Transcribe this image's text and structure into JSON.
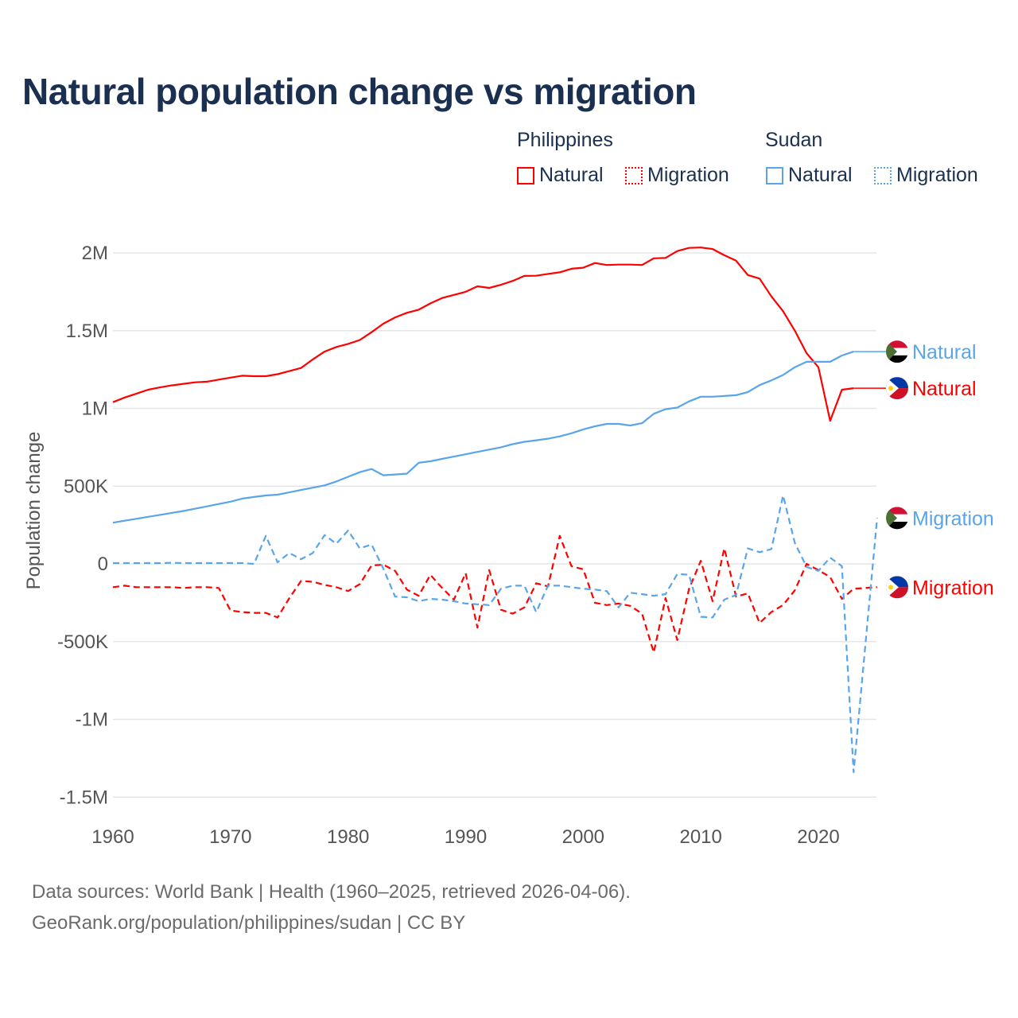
{
  "title": "Natural population change vs migration",
  "legend": {
    "groups": [
      {
        "name": "Philippines",
        "color": "#ff0000",
        "items": [
          "Natural",
          "Migration"
        ]
      },
      {
        "name": "Sudan",
        "color": "#5aa5ea",
        "items": [
          "Natural",
          "Migration"
        ]
      }
    ]
  },
  "footer": {
    "line1": "Data sources: World Bank | Health (1960–2025, retrieved 2026-04-06).",
    "line2": "GeoRank.org/population/philippines/sudan | CC BY"
  },
  "chart_data": {
    "type": "line",
    "title": "Natural population change vs migration",
    "xlabel": "",
    "ylabel": "Population change",
    "xlim": [
      1960,
      2025
    ],
    "ylim": [
      -1500000,
      2200000
    ],
    "x_ticks": [
      1960,
      1970,
      1980,
      1990,
      2000,
      2010,
      2020
    ],
    "x_tick_labels": [
      "1960",
      "1970",
      "1980",
      "1990",
      "2000",
      "2010",
      "2020"
    ],
    "y_ticks": [
      -1500000,
      -1000000,
      -500000,
      0,
      500000,
      1000000,
      1500000,
      2000000
    ],
    "y_tick_labels": [
      "-1.5M",
      "-1M",
      "-500K",
      "0",
      "500K",
      "1M",
      "1.5M",
      "2M"
    ],
    "grid": true,
    "start_year": 1960,
    "series": [
      {
        "name": "Philippines Natural",
        "label": "Natural",
        "color": "#ff0000",
        "dash": false,
        "flag": "philippines",
        "values_k": [
          1040,
          1070,
          1095,
          1120,
          1135,
          1148,
          1158,
          1168,
          1172,
          1185,
          1198,
          1210,
          1207,
          1207,
          1220,
          1240,
          1260,
          1315,
          1365,
          1395,
          1415,
          1440,
          1490,
          1545,
          1585,
          1615,
          1635,
          1675,
          1710,
          1730,
          1750,
          1785,
          1775,
          1795,
          1820,
          1852,
          1853,
          1865,
          1875,
          1898,
          1905,
          1935,
          1922,
          1925,
          1925,
          1922,
          1965,
          1968,
          2012,
          2032,
          2035,
          2025,
          1985,
          1950,
          1858,
          1835,
          1720,
          1625,
          1500,
          1355,
          1265,
          920,
          1120,
          1130
        ]
      },
      {
        "name": "Philippines Migration",
        "label": "Migration",
        "color": "#ff0000",
        "dash": true,
        "flag": "philippines",
        "values_k": [
          -150,
          -140,
          -150,
          -150,
          -150,
          -150,
          -155,
          -150,
          -150,
          -155,
          -300,
          -310,
          -315,
          -315,
          -345,
          -220,
          -110,
          -115,
          -135,
          -150,
          -175,
          -130,
          -10,
          -5,
          -45,
          -165,
          -205,
          -70,
          -155,
          -230,
          -60,
          -410,
          -40,
          -295,
          -320,
          -280,
          -125,
          -145,
          180,
          -15,
          -35,
          -250,
          -265,
          -255,
          -270,
          -320,
          -570,
          -220,
          -490,
          -160,
          20,
          -240,
          100,
          -210,
          -190,
          -380,
          -310,
          -265,
          -170,
          0,
          -40,
          -85,
          -225,
          -160,
          -155,
          -150
        ]
      },
      {
        "name": "Sudan Natural",
        "label": "Natural",
        "color": "#5aa5ea",
        "dash": false,
        "flag": "sudan",
        "values_k": [
          265,
          278,
          290,
          303,
          315,
          328,
          340,
          355,
          370,
          385,
          400,
          420,
          430,
          440,
          445,
          460,
          475,
          490,
          505,
          530,
          560,
          590,
          610,
          570,
          575,
          580,
          650,
          660,
          675,
          690,
          705,
          720,
          735,
          750,
          770,
          785,
          795,
          805,
          820,
          840,
          865,
          885,
          900,
          900,
          890,
          905,
          965,
          995,
          1005,
          1045,
          1075,
          1075,
          1080,
          1085,
          1105,
          1150,
          1180,
          1215,
          1265,
          1300,
          1300,
          1300,
          1340,
          1365
        ]
      },
      {
        "name": "Sudan Migration",
        "label": "Migration",
        "color": "#5aa5ea",
        "dash": true,
        "flag": "sudan",
        "values_k": [
          5,
          5,
          5,
          5,
          5,
          7,
          5,
          5,
          5,
          5,
          5,
          5,
          0,
          180,
          10,
          70,
          30,
          70,
          185,
          130,
          215,
          100,
          125,
          -30,
          -210,
          -215,
          -240,
          -225,
          -230,
          -240,
          -255,
          -260,
          -265,
          -160,
          -140,
          -140,
          -310,
          -140,
          -140,
          -150,
          -160,
          -165,
          -175,
          -280,
          -185,
          -195,
          -205,
          -195,
          -65,
          -70,
          -340,
          -345,
          -230,
          -200,
          100,
          75,
          95,
          440,
          135,
          -20,
          -45,
          40,
          -15,
          -1340,
          -520,
          295
        ]
      }
    ]
  }
}
